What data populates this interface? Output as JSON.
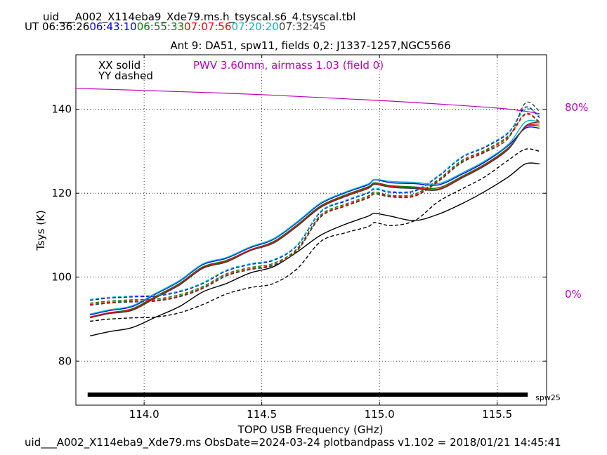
{
  "header": {
    "filename": "uid___A002_X114eba9_Xde79.ms.h_tsyscal.s6_4.tsyscal.tbl",
    "ut_label": "UT",
    "times": [
      {
        "text": "06:36:26",
        "color": "#000000"
      },
      {
        "text": "06:43:10",
        "color": "#0000ff"
      },
      {
        "text": "06:55:33",
        "color": "#008000"
      },
      {
        "text": "07:07:56",
        "color": "#ff0000"
      },
      {
        "text": "07:20:20",
        "color": "#00bfbf"
      },
      {
        "text": "07:32:45",
        "color": "#404040"
      }
    ],
    "subtitle": "Ant 9: DA51,  spw11,  fields 0,2: J1337-1257,NGC5566"
  },
  "legend": {
    "solid": "XX solid",
    "dashed": "YY dashed",
    "pwv": "PWV 3.60mm, airmass 1.03 (field 0)"
  },
  "right_axis": {
    "top": "80%",
    "bottom": "0%"
  },
  "footer": "uid___A002_X114eba9_Xde79.ms  ObsDate=2024-03-24   plotbandpass v1.102 = 2018/01/21 14:45:41",
  "chart_data": {
    "type": "line",
    "xlabel": "TOPO USB Frequency (GHz)",
    "ylabel": "Tsys (K)",
    "xlim": [
      113.71,
      115.71
    ],
    "ylim": [
      69.5,
      153
    ],
    "xticks": [
      "114.0",
      "114.5",
      "115.0",
      "115.5"
    ],
    "xtick_values": [
      114.0,
      114.5,
      115.0,
      115.5
    ],
    "yticks": [
      "80",
      "100",
      "120",
      "140"
    ],
    "ytick_values": [
      80,
      100,
      120,
      140
    ],
    "grid": true,
    "colors": {
      "accent": "#bf00bf"
    },
    "spw_bar": {
      "x_start": 113.76,
      "x_end": 115.63,
      "y": 71.5,
      "label": "spw25"
    },
    "transmission": {
      "color": "#bf00bf",
      "x": [
        113.71,
        114.0,
        114.5,
        115.0,
        115.5,
        115.68
      ],
      "y": [
        145.0,
        144.5,
        143.5,
        142.1,
        140.3,
        139.0
      ]
    },
    "x": [
      113.77,
      113.85,
      113.95,
      114.05,
      114.15,
      114.25,
      114.35,
      114.45,
      114.55,
      114.65,
      114.75,
      114.85,
      114.95,
      114.98,
      115.05,
      115.15,
      115.25,
      115.35,
      115.45,
      115.55,
      115.62,
      115.68
    ],
    "series": [
      {
        "color": "#000000",
        "style": "solid",
        "values": [
          86.0,
          87.0,
          88.0,
          90.5,
          93.0,
          96.5,
          98.5,
          101.0,
          102.5,
          106.0,
          110.0,
          112.5,
          114.5,
          115.2,
          114.5,
          113.5,
          115.0,
          117.5,
          120.5,
          124.0,
          127.0,
          127.0
        ]
      },
      {
        "color": "#000000",
        "style": "dashed",
        "values": [
          89.5,
          90.0,
          90.3,
          90.5,
          91.5,
          93.5,
          96.0,
          97.5,
          98.5,
          102.0,
          108.5,
          110.5,
          112.0,
          113.0,
          112.3,
          113.5,
          118.0,
          121.0,
          124.0,
          128.0,
          130.5,
          130.0
        ]
      },
      {
        "color": "#0000ff",
        "style": "solid",
        "values": [
          91.0,
          92.0,
          93.0,
          96.0,
          99.0,
          103.0,
          104.5,
          107.0,
          109.0,
          113.0,
          117.5,
          120.0,
          122.0,
          123.2,
          122.5,
          122.3,
          122.0,
          124.5,
          127.5,
          131.5,
          135.5,
          135.5
        ]
      },
      {
        "color": "#0000ff",
        "style": "dashed",
        "values": [
          94.5,
          95.0,
          95.3,
          95.5,
          96.5,
          98.5,
          101.5,
          103.0,
          104.0,
          107.5,
          115.5,
          118.0,
          120.0,
          121.0,
          120.2,
          120.5,
          124.0,
          128.5,
          131.0,
          134.5,
          140.5,
          138.0
        ]
      },
      {
        "color": "#008000",
        "style": "solid",
        "values": [
          90.5,
          91.5,
          92.5,
          95.5,
          98.5,
          102.5,
          104.0,
          106.5,
          108.5,
          112.5,
          117.0,
          119.5,
          121.5,
          122.5,
          121.8,
          121.5,
          121.3,
          124.0,
          127.0,
          131.0,
          135.8,
          136.0
        ]
      },
      {
        "color": "#008000",
        "style": "dashed",
        "values": [
          93.8,
          94.3,
          94.6,
          94.8,
          95.8,
          97.8,
          100.8,
          102.3,
          103.3,
          106.8,
          114.8,
          117.3,
          119.3,
          120.3,
          119.5,
          119.8,
          123.3,
          127.8,
          130.3,
          133.8,
          139.0,
          137.0
        ]
      },
      {
        "color": "#ff0000",
        "style": "solid",
        "values": [
          90.5,
          91.5,
          92.3,
          95.3,
          98.3,
          102.3,
          103.8,
          106.5,
          108.3,
          112.3,
          116.8,
          119.3,
          121.3,
          122.3,
          121.6,
          121.3,
          121.0,
          123.8,
          126.8,
          130.8,
          135.8,
          136.5
        ]
      },
      {
        "color": "#ff0000",
        "style": "dashed",
        "values": [
          93.5,
          94.0,
          94.3,
          94.5,
          95.5,
          97.5,
          100.5,
          102.0,
          103.0,
          106.5,
          114.5,
          117.0,
          119.0,
          120.0,
          119.3,
          119.5,
          123.0,
          127.5,
          130.0,
          133.5,
          138.8,
          136.8
        ]
      },
      {
        "color": "#00bfbf",
        "style": "solid",
        "values": [
          91.2,
          92.2,
          93.2,
          96.2,
          99.2,
          103.2,
          104.7,
          107.2,
          109.2,
          113.2,
          117.7,
          120.2,
          122.2,
          123.3,
          122.8,
          122.6,
          122.3,
          124.8,
          127.8,
          131.8,
          137.0,
          137.0
        ]
      },
      {
        "color": "#00bfbf",
        "style": "dashed",
        "values": [
          94.7,
          95.2,
          95.5,
          95.7,
          96.7,
          98.7,
          101.7,
          103.2,
          104.2,
          107.7,
          115.7,
          118.2,
          120.2,
          121.2,
          120.4,
          120.7,
          124.2,
          128.7,
          131.2,
          134.7,
          140.0,
          138.5
        ]
      },
      {
        "color": "#404040",
        "style": "solid",
        "values": [
          90.3,
          91.3,
          92.1,
          95.1,
          98.1,
          102.1,
          103.6,
          106.3,
          108.1,
          112.1,
          116.6,
          119.1,
          121.1,
          122.1,
          121.4,
          121.1,
          120.8,
          123.6,
          126.6,
          130.6,
          136.0,
          137.0
        ]
      },
      {
        "color": "#404040",
        "style": "dashed",
        "values": [
          93.3,
          93.8,
          94.1,
          94.3,
          95.3,
          97.3,
          100.3,
          101.8,
          102.8,
          106.3,
          114.3,
          116.8,
          118.8,
          119.8,
          119.1,
          119.3,
          122.8,
          127.3,
          129.8,
          133.3,
          141.5,
          139.5
        ]
      }
    ]
  }
}
